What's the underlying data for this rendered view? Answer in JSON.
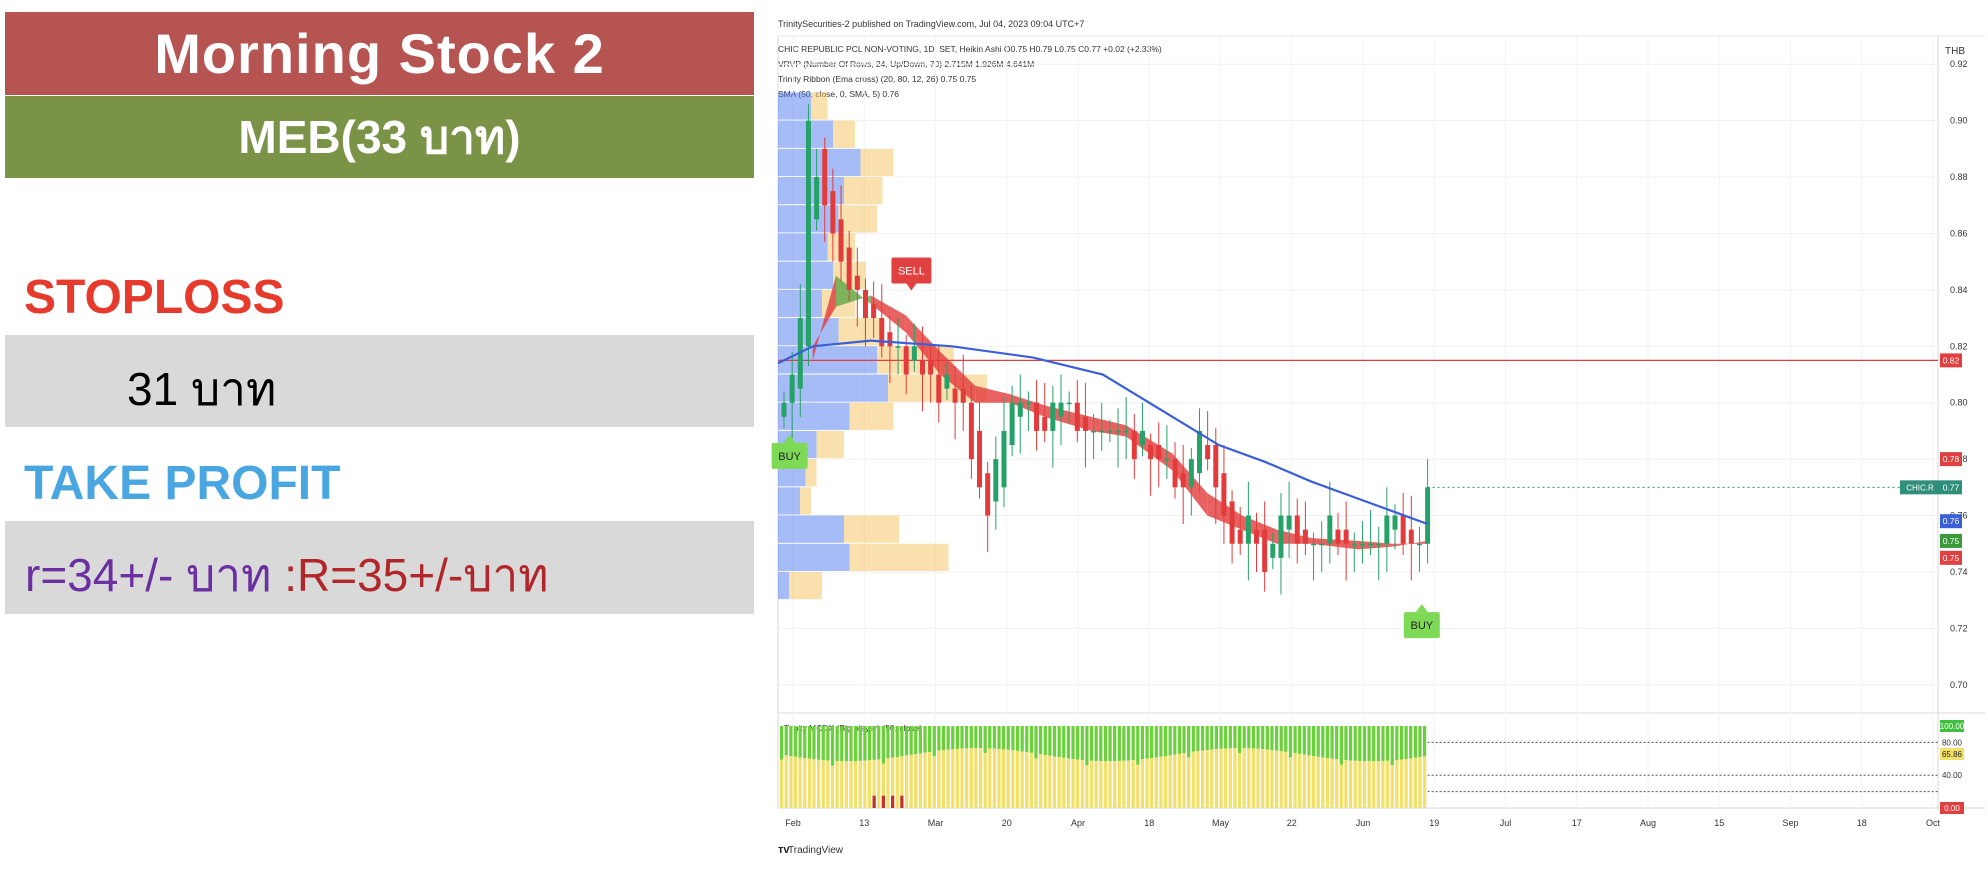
{
  "panel": {
    "title": "Morning Stock 2",
    "subtitle": "MEB(33 บาท)",
    "stoploss_label": "STOPLOSS",
    "stoploss_value": "31 บาท",
    "takeprofit_label": "TAKE PROFIT",
    "takeprofit_r": "r=34+/- บาท",
    "takeprofit_R": " :R=35+/-บาท",
    "colors": {
      "title_bg": "#b55450",
      "subtitle_bg": "#7a9347",
      "stoploss": "#e53a2c",
      "takeprofit": "#49a6e0",
      "value_bg": "#d9d9d9"
    }
  },
  "chart_data": {
    "type": "candlestick",
    "header": "TrinitySecurities-2 published on TradingView.com, Jul 04, 2023 09:04 UTC+7",
    "legend": [
      "CHIC REPUBLIC PCL NON-VOTING, 1D, SET, Heikin Ashi  O0.75  H0.79  L0.75  C0.77  +0.02 (+2.33%)",
      "VRVP (Number Of Rows, 24, Up/Down, 70)  2.715M  1.926M  4.641M",
      "Trinity Ribbon (Ema cross) (20, 80, 12, 26)  0.75  0.75",
      "SMA (50, close, 0, SMA, 5)  0.76"
    ],
    "currency": "THB",
    "y_ticks": [
      "0.92",
      "0.90",
      "0.88",
      "0.86",
      "0.84",
      "0.82",
      "0.80",
      "0.78",
      "0.76",
      "0.74",
      "0.72",
      "0.70"
    ],
    "ylim": [
      0.69,
      0.93
    ],
    "x_ticks": [
      "Feb",
      "13",
      "Mar",
      "20",
      "Apr",
      "18",
      "May",
      "22",
      "Jun",
      "19",
      "Jul",
      "17",
      "Aug",
      "15",
      "Sep",
      "18",
      "Oct"
    ],
    "resistance_line": 0.815,
    "price_tags": [
      {
        "label": "0.82",
        "value": 0.815,
        "color": "#e04040"
      },
      {
        "label": "0.78",
        "value": 0.78,
        "color": "#e04040"
      },
      {
        "label": "0.77",
        "value": 0.77,
        "color": "#2f8f7a",
        "prefix": "CHIC.R"
      },
      {
        "label": "0.76",
        "value": 0.758,
        "color": "#3a5fd8"
      },
      {
        "label": "0.75",
        "value": 0.751,
        "color": "#3a9a3a"
      },
      {
        "label": "0.75",
        "value": 0.745,
        "color": "#e04040"
      }
    ],
    "signals": [
      {
        "label": "SELL",
        "type": "sell",
        "x": 0.115,
        "price": 0.838
      },
      {
        "label": "BUY",
        "type": "buy",
        "x": 0.01,
        "price": 0.79
      },
      {
        "label": "BUY",
        "type": "buy",
        "x": 0.555,
        "price": 0.73
      }
    ],
    "series": [
      {
        "name": "SMA (50, close, 0, SMA, 5)",
        "color": "#3a5fd8",
        "x": [
          0,
          0.03,
          0.08,
          0.15,
          0.22,
          0.28,
          0.34,
          0.38,
          0.42,
          0.46,
          0.5,
          0.54,
          0.56
        ],
        "values": [
          0.814,
          0.82,
          0.822,
          0.82,
          0.816,
          0.81,
          0.795,
          0.785,
          0.779,
          0.772,
          0.766,
          0.76,
          0.757
        ]
      }
    ],
    "ribbon": {
      "x": [
        0.03,
        0.05,
        0.08,
        0.11,
        0.14,
        0.17,
        0.2,
        0.23,
        0.27,
        0.3,
        0.34,
        0.37,
        0.4,
        0.43,
        0.46,
        0.5,
        0.53,
        0.56
      ],
      "fast": [
        0.815,
        0.845,
        0.835,
        0.825,
        0.81,
        0.8,
        0.8,
        0.795,
        0.79,
        0.788,
        0.776,
        0.76,
        0.755,
        0.75,
        0.75,
        0.748,
        0.749,
        0.751
      ],
      "slow": [
        0.82,
        0.834,
        0.838,
        0.831,
        0.818,
        0.806,
        0.803,
        0.799,
        0.795,
        0.792,
        0.782,
        0.768,
        0.76,
        0.755,
        0.752,
        0.751,
        0.75,
        0.75
      ]
    },
    "candles": {
      "x_start": 0.0,
      "x_end": 0.56,
      "close": [
        0.8,
        0.81,
        0.83,
        0.9,
        0.88,
        0.87,
        0.86,
        0.85,
        0.84,
        0.84,
        0.83,
        0.83,
        0.82,
        0.82,
        0.82,
        0.81,
        0.82,
        0.81,
        0.81,
        0.8,
        0.81,
        0.8,
        0.8,
        0.78,
        0.77,
        0.76,
        0.78,
        0.79,
        0.8,
        0.8,
        0.8,
        0.79,
        0.79,
        0.8,
        0.8,
        0.8,
        0.79,
        0.79,
        0.79,
        0.79,
        0.79,
        0.79,
        0.79,
        0.78,
        0.79,
        0.78,
        0.78,
        0.78,
        0.77,
        0.77,
        0.78,
        0.79,
        0.78,
        0.77,
        0.76,
        0.75,
        0.75,
        0.76,
        0.75,
        0.74,
        0.75,
        0.76,
        0.76,
        0.75,
        0.75,
        0.75,
        0.75,
        0.76,
        0.75,
        0.75,
        0.75,
        0.75,
        0.75,
        0.75,
        0.76,
        0.76,
        0.75,
        0.75,
        0.75,
        0.77
      ]
    },
    "lower_pane": {
      "title": "Trinity MCDX (Big player) (50, close)",
      "y_ticks": [
        "100.00",
        "80.00",
        "65.86",
        "40.00",
        "0.00"
      ],
      "levels": [
        100,
        80,
        65.86,
        40,
        20,
        0
      ]
    },
    "volume_profile": {
      "rows": [
        {
          "price": 0.905,
          "up": 0.3,
          "down": 0.15
        },
        {
          "price": 0.895,
          "up": 0.5,
          "down": 0.2
        },
        {
          "price": 0.885,
          "up": 0.75,
          "down": 0.3
        },
        {
          "price": 0.875,
          "up": 0.6,
          "down": 0.35
        },
        {
          "price": 0.865,
          "up": 0.55,
          "down": 0.35
        },
        {
          "price": 0.855,
          "up": 0.45,
          "down": 0.25
        },
        {
          "price": 0.845,
          "up": 0.5,
          "down": 0.3
        },
        {
          "price": 0.835,
          "up": 0.4,
          "down": 0.3
        },
        {
          "price": 0.825,
          "up": 0.55,
          "down": 0.4
        },
        {
          "price": 0.815,
          "up": 0.9,
          "down": 0.7
        },
        {
          "price": 0.805,
          "up": 1.0,
          "down": 0.9
        },
        {
          "price": 0.795,
          "up": 0.65,
          "down": 0.4
        },
        {
          "price": 0.785,
          "up": 0.35,
          "down": 0.25
        },
        {
          "price": 0.775,
          "up": 0.25,
          "down": 0.1
        },
        {
          "price": 0.765,
          "up": 0.2,
          "down": 0.1
        },
        {
          "price": 0.755,
          "up": 0.6,
          "down": 0.5
        },
        {
          "price": 0.745,
          "up": 0.65,
          "down": 0.9
        },
        {
          "price": 0.735,
          "up": 0.1,
          "down": 0.3
        }
      ]
    },
    "footer": "TradingView"
  }
}
